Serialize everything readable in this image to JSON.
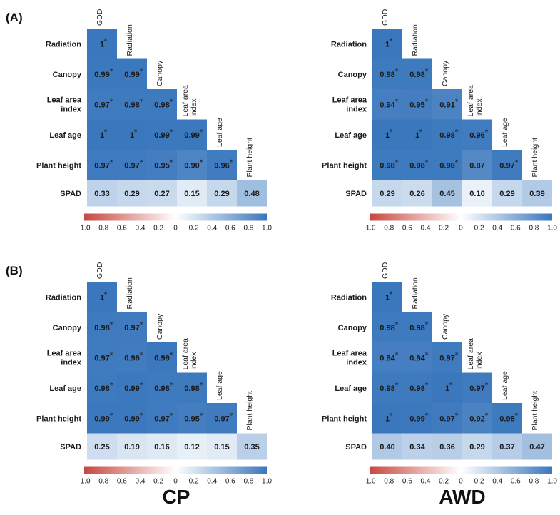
{
  "colors": {
    "negative": "#c8473e",
    "zero": "#ffffff",
    "positive": "#3a77bd"
  },
  "panel_labels": [
    "(A)",
    "(B)"
  ],
  "group_labels": [
    "CP",
    "AWD"
  ],
  "chart_data": [
    {
      "type": "heatmap",
      "panel": "(A)",
      "group": "CP",
      "columns": [
        "GDD",
        "Radiation",
        "Canopy",
        "Leaf area index",
        "Leaf age",
        "Plant height"
      ],
      "rows": [
        "Radiation",
        "Canopy",
        "Leaf area index",
        "Leaf age",
        "Plant height",
        "SPAD"
      ],
      "values": [
        [
          "1"
        ],
        [
          "0.99",
          "0.99"
        ],
        [
          "0.97",
          "0.98",
          "0.98"
        ],
        [
          "1",
          "1",
          "0.99",
          "0.99"
        ],
        [
          "0.97",
          "0.97",
          "0.95",
          "0.90",
          "0.96"
        ],
        [
          "0.33",
          "0.29",
          "0.27",
          "0.15",
          "0.29",
          "0.48"
        ]
      ],
      "significant": [
        [
          true
        ],
        [
          true,
          true
        ],
        [
          true,
          true,
          true
        ],
        [
          true,
          true,
          true,
          true
        ],
        [
          true,
          true,
          true,
          true,
          true
        ],
        [
          false,
          false,
          false,
          false,
          false,
          false
        ]
      ],
      "colorbar": {
        "range": [
          -1.0,
          1.0
        ],
        "ticks": [
          "-1.0",
          "-0.8",
          "-0.6",
          "-0.4",
          "-0.2",
          "0",
          "0.2",
          "0.4",
          "0.6",
          "0.8",
          "1.0"
        ]
      }
    },
    {
      "type": "heatmap",
      "panel": "(A)",
      "group": "AWD",
      "columns": [
        "GDD",
        "Radiation",
        "Canopy",
        "Leaf area index",
        "Leaf age",
        "Plant height"
      ],
      "rows": [
        "Radiation",
        "Canopy",
        "Leaf area index",
        "Leaf age",
        "Plant height",
        "SPAD"
      ],
      "values": [
        [
          "1"
        ],
        [
          "0.98",
          "0.98"
        ],
        [
          "0.94",
          "0.95",
          "0.91"
        ],
        [
          "1",
          "1",
          "0.98",
          "0.96"
        ],
        [
          "0.98",
          "0.98",
          "0.98",
          "0.87",
          "0.97"
        ],
        [
          "0.29",
          "0.26",
          "0.45",
          "0.10",
          "0.29",
          "0.39"
        ]
      ],
      "significant": [
        [
          true
        ],
        [
          true,
          true
        ],
        [
          true,
          true,
          true
        ],
        [
          true,
          true,
          true,
          true
        ],
        [
          true,
          true,
          true,
          false,
          true
        ],
        [
          false,
          false,
          false,
          false,
          false,
          false
        ]
      ],
      "colorbar": {
        "range": [
          -1.0,
          1.0
        ],
        "ticks": [
          "-1.0",
          "-0.8",
          "-0.6",
          "-0.4",
          "-0.2",
          "0",
          "0.2",
          "0.4",
          "0.6",
          "0.8",
          "1.0"
        ]
      }
    },
    {
      "type": "heatmap",
      "panel": "(B)",
      "group": "CP",
      "columns": [
        "GDD",
        "Radiation",
        "Canopy",
        "Leaf area index",
        "Leaf age",
        "Plant height"
      ],
      "rows": [
        "Radiation",
        "Canopy",
        "Leaf area index",
        "Leaf age",
        "Plant height",
        "SPAD"
      ],
      "values": [
        [
          "1"
        ],
        [
          "0.98",
          "0.97"
        ],
        [
          "0.97",
          "0.96",
          "0.99"
        ],
        [
          "0.98",
          "0.99",
          "0.98",
          "0.98"
        ],
        [
          "0.99",
          "0.99",
          "0.97",
          "0.95",
          "0.97"
        ],
        [
          "0.25",
          "0.19",
          "0.16",
          "0.12",
          "0.15",
          "0.35"
        ]
      ],
      "significant": [
        [
          true
        ],
        [
          true,
          true
        ],
        [
          true,
          true,
          true
        ],
        [
          true,
          true,
          true,
          true
        ],
        [
          true,
          true,
          true,
          true,
          true
        ],
        [
          false,
          false,
          false,
          false,
          false,
          false
        ]
      ],
      "colorbar": {
        "range": [
          -1.0,
          1.0
        ],
        "ticks": [
          "-1.0",
          "-0.8",
          "-0.6",
          "-0.4",
          "-0.2",
          "0",
          "0.2",
          "0.4",
          "0.6",
          "0.8",
          "1.0"
        ]
      }
    },
    {
      "type": "heatmap",
      "panel": "(B)",
      "group": "AWD",
      "columns": [
        "GDD",
        "Radiation",
        "Canopy",
        "Leaf area index",
        "Leaf age",
        "Plant height"
      ],
      "rows": [
        "Radiation",
        "Canopy",
        "Leaf area index",
        "Leaf age",
        "Plant height",
        "SPAD"
      ],
      "values": [
        [
          "1"
        ],
        [
          "0.98",
          "0.98"
        ],
        [
          "0.94",
          "0.94",
          "0.97"
        ],
        [
          "0.98",
          "0.98",
          "1",
          "0.97"
        ],
        [
          "1",
          "0.99",
          "0.97",
          "0.92",
          "0.98"
        ],
        [
          "0.40",
          "0.34",
          "0.36",
          "0.29",
          "0.37",
          "0.47"
        ]
      ],
      "significant": [
        [
          true
        ],
        [
          true,
          true
        ],
        [
          true,
          true,
          true
        ],
        [
          true,
          true,
          true,
          true
        ],
        [
          true,
          true,
          true,
          true,
          true
        ],
        [
          false,
          false,
          false,
          false,
          false,
          false
        ]
      ],
      "colorbar": {
        "range": [
          -1.0,
          1.0
        ],
        "ticks": [
          "-1.0",
          "-0.8",
          "-0.6",
          "-0.4",
          "-0.2",
          "0",
          "0.2",
          "0.4",
          "0.6",
          "0.8",
          "1.0"
        ]
      }
    }
  ]
}
